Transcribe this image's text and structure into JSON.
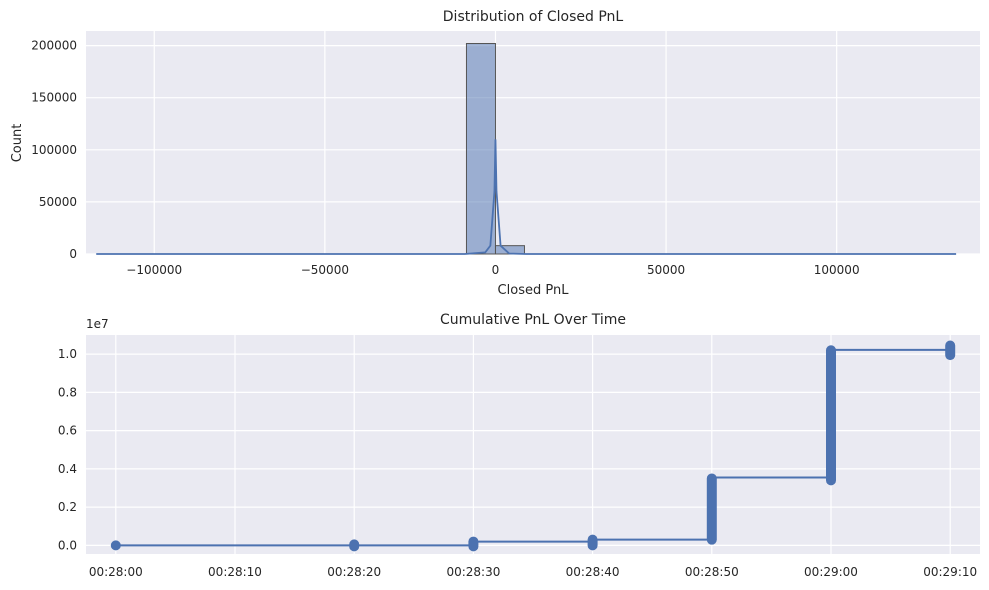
{
  "chart_data": [
    {
      "type": "histogram",
      "title": "Distribution of Closed PnL",
      "xlabel": "Closed PnL",
      "ylabel": "Count",
      "xlim": [
        -120000,
        142000
      ],
      "ylim": [
        0,
        214000
      ],
      "xticks": [
        -100000,
        -50000,
        0,
        50000,
        100000
      ],
      "xtick_labels": [
        "−100000",
        "−50000",
        "0",
        "50000",
        "100000"
      ],
      "yticks": [
        0,
        50000,
        100000,
        150000,
        200000
      ],
      "ytick_labels": [
        "0",
        "50000",
        "100000",
        "150000",
        "200000"
      ],
      "bins": [
        {
          "x0": -8500,
          "x1": 0,
          "count": 202000
        },
        {
          "x0": 0,
          "x1": 8500,
          "count": 8000
        }
      ],
      "kde": [
        [
          -117000,
          0
        ],
        [
          -9000,
          0
        ],
        [
          -3000,
          1500
        ],
        [
          -1500,
          8000
        ],
        [
          -300,
          60000
        ],
        [
          0,
          110000
        ],
        [
          300,
          60000
        ],
        [
          1500,
          8000
        ],
        [
          4000,
          500
        ],
        [
          9000,
          0
        ],
        [
          135000,
          0
        ]
      ],
      "colors": {
        "bar": "#4c72b0",
        "line": "#4c72b0",
        "bg": "#eaeaf2"
      }
    },
    {
      "type": "line",
      "title": "Cumulative PnL Over Time",
      "xlabel": "",
      "ylabel": "",
      "offset_label": "1e7",
      "x_unit": "seconds",
      "xlim": [
        -2.5,
        72.5
      ],
      "ylim": [
        -0.045,
        1.1
      ],
      "xticks": [
        0,
        10,
        20,
        30,
        40,
        50,
        60,
        70
      ],
      "xtick_labels": [
        "00:28:00",
        "00:28:10",
        "00:28:20",
        "00:28:30",
        "00:28:40",
        "00:28:50",
        "00:29:00",
        "00:29:10"
      ],
      "yticks": [
        0.0,
        0.2,
        0.4,
        0.6,
        0.8,
        1.0
      ],
      "ytick_labels": [
        "0.0",
        "0.2",
        "0.4",
        "0.6",
        "0.8",
        "1.0"
      ],
      "points": [
        {
          "t": 0,
          "y_min": 0.0,
          "y_max": 0.0
        },
        {
          "t": 20,
          "y_min": -0.005,
          "y_max": 0.005
        },
        {
          "t": 30,
          "y_min": -0.005,
          "y_max": 0.02
        },
        {
          "t": 40,
          "y_min": 0.0,
          "y_max": 0.03
        },
        {
          "t": 50,
          "y_min": 0.03,
          "y_max": 0.35
        },
        {
          "t": 60,
          "y_min": 0.34,
          "y_max": 1.02
        },
        {
          "t": 70,
          "y_min": 0.995,
          "y_max": 1.045
        }
      ],
      "step_line": [
        [
          0,
          0.0
        ],
        [
          20,
          0.0
        ],
        [
          30,
          0.0
        ],
        [
          30,
          0.02
        ],
        [
          40,
          0.02
        ],
        [
          40,
          0.03
        ],
        [
          50,
          0.03
        ],
        [
          50,
          0.355
        ],
        [
          60,
          0.355
        ],
        [
          60,
          1.022
        ],
        [
          70,
          1.022
        ]
      ],
      "colors": {
        "line": "#4c72b0",
        "bg": "#eaeaf2"
      }
    }
  ]
}
